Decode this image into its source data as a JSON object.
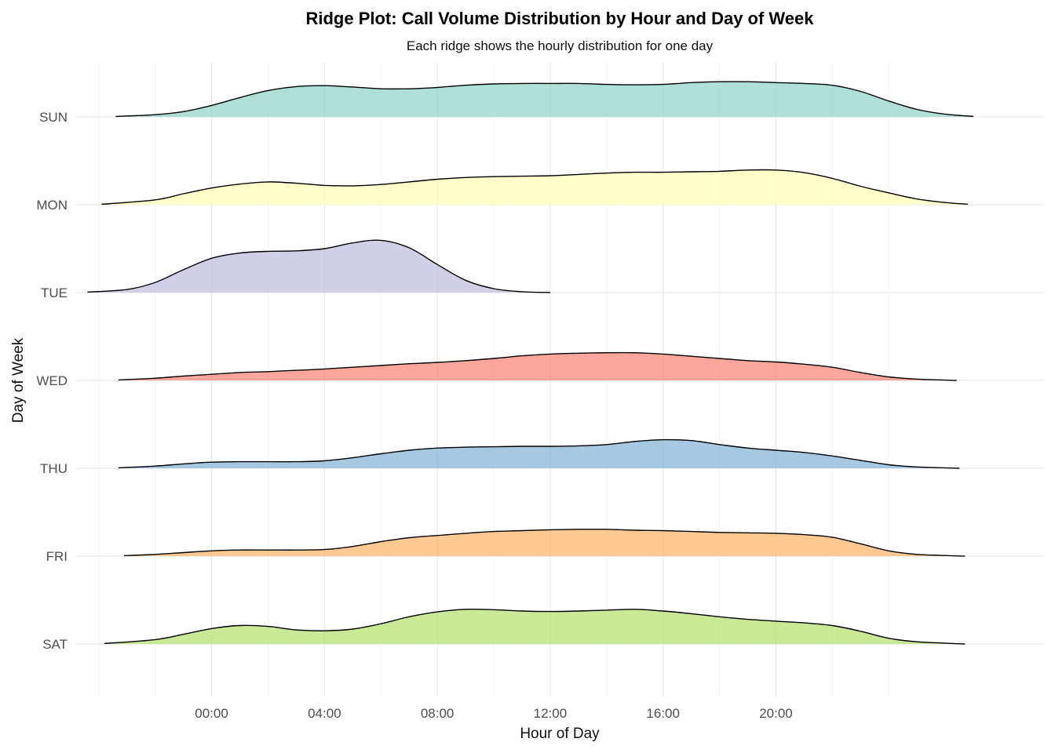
{
  "chart_data": {
    "type": "ridgeline",
    "title": "Ridge Plot: Call Volume Distribution by Hour and Day of Week",
    "subtitle": "Each ridge shows the hourly distribution for one day",
    "xlabel": "Hour of Day",
    "ylabel": "Day of Week",
    "x_ticks": [
      {
        "value": 0,
        "label": "00:00"
      },
      {
        "value": 4,
        "label": "04:00"
      },
      {
        "value": 8,
        "label": "08:00"
      },
      {
        "value": 12,
        "label": "12:00"
      },
      {
        "value": 16,
        "label": "16:00"
      },
      {
        "value": 20,
        "label": "20:00"
      }
    ],
    "xlim": [
      -4.8,
      29.5
    ],
    "grid": true,
    "legend": "none",
    "series": [
      {
        "name": "SUN",
        "color": "#8dd3c7",
        "x_range": [
          -3.4,
          27.0
        ],
        "points": [
          [
            -3.4,
            0.01
          ],
          [
            -2,
            0.05
          ],
          [
            -1,
            0.12
          ],
          [
            0,
            0.26
          ],
          [
            1,
            0.44
          ],
          [
            2,
            0.6
          ],
          [
            3,
            0.69
          ],
          [
            4,
            0.71
          ],
          [
            5,
            0.68
          ],
          [
            6,
            0.64
          ],
          [
            7,
            0.64
          ],
          [
            8,
            0.67
          ],
          [
            9,
            0.72
          ],
          [
            10,
            0.75
          ],
          [
            11,
            0.76
          ],
          [
            12,
            0.76
          ],
          [
            13,
            0.76
          ],
          [
            14,
            0.74
          ],
          [
            15,
            0.73
          ],
          [
            16,
            0.74
          ],
          [
            17,
            0.78
          ],
          [
            18,
            0.8
          ],
          [
            19,
            0.8
          ],
          [
            20,
            0.78
          ],
          [
            21,
            0.76
          ],
          [
            22,
            0.72
          ],
          [
            23,
            0.58
          ],
          [
            24,
            0.36
          ],
          [
            25,
            0.17
          ],
          [
            26,
            0.06
          ],
          [
            27,
            0.01
          ]
        ]
      },
      {
        "name": "MON",
        "color": "#ffffb3",
        "x_range": [
          -3.9,
          26.8
        ],
        "points": [
          [
            -3.9,
            0.01
          ],
          [
            -2,
            0.11
          ],
          [
            -1,
            0.25
          ],
          [
            0,
            0.38
          ],
          [
            1,
            0.47
          ],
          [
            2,
            0.52
          ],
          [
            3,
            0.49
          ],
          [
            4,
            0.44
          ],
          [
            5,
            0.43
          ],
          [
            6,
            0.46
          ],
          [
            7,
            0.52
          ],
          [
            8,
            0.58
          ],
          [
            9,
            0.62
          ],
          [
            10,
            0.64
          ],
          [
            11,
            0.65
          ],
          [
            12,
            0.66
          ],
          [
            13,
            0.69
          ],
          [
            14,
            0.72
          ],
          [
            15,
            0.74
          ],
          [
            16,
            0.74
          ],
          [
            17,
            0.75
          ],
          [
            18,
            0.76
          ],
          [
            19,
            0.79
          ],
          [
            20,
            0.79
          ],
          [
            21,
            0.73
          ],
          [
            22,
            0.6
          ],
          [
            23,
            0.42
          ],
          [
            24,
            0.27
          ],
          [
            25,
            0.13
          ],
          [
            26,
            0.05
          ],
          [
            26.8,
            0.01
          ]
        ]
      },
      {
        "name": "TUE",
        "color": "#bebada",
        "x_range": [
          -4.4,
          12.0
        ],
        "points": [
          [
            -4.4,
            0.01
          ],
          [
            -3,
            0.07
          ],
          [
            -2,
            0.23
          ],
          [
            -1,
            0.52
          ],
          [
            0,
            0.78
          ],
          [
            1,
            0.9
          ],
          [
            2,
            0.94
          ],
          [
            3,
            0.95
          ],
          [
            4,
            1.0
          ],
          [
            5,
            1.13
          ],
          [
            6,
            1.19
          ],
          [
            7,
            1.02
          ],
          [
            8,
            0.64
          ],
          [
            9,
            0.28
          ],
          [
            10,
            0.09
          ],
          [
            11,
            0.02
          ],
          [
            12,
            0.0
          ]
        ]
      },
      {
        "name": "WED",
        "color": "#fb8072",
        "x_range": [
          -3.3,
          26.4
        ],
        "points": [
          [
            -3.3,
            0.01
          ],
          [
            -2,
            0.05
          ],
          [
            -1,
            0.1
          ],
          [
            0,
            0.14
          ],
          [
            1,
            0.18
          ],
          [
            2,
            0.2
          ],
          [
            3,
            0.23
          ],
          [
            4,
            0.26
          ],
          [
            5,
            0.3
          ],
          [
            6,
            0.34
          ],
          [
            7,
            0.38
          ],
          [
            8,
            0.41
          ],
          [
            9,
            0.45
          ],
          [
            10,
            0.5
          ],
          [
            11,
            0.56
          ],
          [
            12,
            0.6
          ],
          [
            13,
            0.62
          ],
          [
            14,
            0.63
          ],
          [
            15,
            0.63
          ],
          [
            16,
            0.6
          ],
          [
            17,
            0.55
          ],
          [
            18,
            0.5
          ],
          [
            19,
            0.45
          ],
          [
            20,
            0.42
          ],
          [
            21,
            0.37
          ],
          [
            22,
            0.3
          ],
          [
            23,
            0.18
          ],
          [
            24,
            0.08
          ],
          [
            25,
            0.03
          ],
          [
            26.4,
            0.0
          ]
        ]
      },
      {
        "name": "THU",
        "color": "#80b1d3",
        "x_range": [
          -3.3,
          26.5
        ],
        "points": [
          [
            -3.3,
            0.01
          ],
          [
            -2,
            0.05
          ],
          [
            -1,
            0.1
          ],
          [
            0,
            0.14
          ],
          [
            1,
            0.15
          ],
          [
            2,
            0.15
          ],
          [
            3,
            0.15
          ],
          [
            4,
            0.17
          ],
          [
            5,
            0.24
          ],
          [
            6,
            0.33
          ],
          [
            7,
            0.41
          ],
          [
            8,
            0.46
          ],
          [
            9,
            0.48
          ],
          [
            10,
            0.49
          ],
          [
            11,
            0.5
          ],
          [
            12,
            0.5
          ],
          [
            13,
            0.51
          ],
          [
            14,
            0.54
          ],
          [
            15,
            0.61
          ],
          [
            16,
            0.65
          ],
          [
            17,
            0.63
          ],
          [
            18,
            0.54
          ],
          [
            19,
            0.46
          ],
          [
            20,
            0.41
          ],
          [
            21,
            0.36
          ],
          [
            22,
            0.28
          ],
          [
            23,
            0.18
          ],
          [
            24,
            0.08
          ],
          [
            25,
            0.03
          ],
          [
            26.5,
            0.0
          ]
        ]
      },
      {
        "name": "FRI",
        "color": "#fdb462",
        "x_range": [
          -3.1,
          26.7
        ],
        "points": [
          [
            -3.1,
            0.01
          ],
          [
            -2,
            0.04
          ],
          [
            -1,
            0.08
          ],
          [
            0,
            0.12
          ],
          [
            1,
            0.14
          ],
          [
            2,
            0.14
          ],
          [
            3,
            0.14
          ],
          [
            4,
            0.15
          ],
          [
            5,
            0.22
          ],
          [
            6,
            0.33
          ],
          [
            7,
            0.42
          ],
          [
            8,
            0.47
          ],
          [
            9,
            0.52
          ],
          [
            10,
            0.56
          ],
          [
            11,
            0.58
          ],
          [
            12,
            0.6
          ],
          [
            13,
            0.61
          ],
          [
            14,
            0.61
          ],
          [
            15,
            0.59
          ],
          [
            16,
            0.58
          ],
          [
            17,
            0.56
          ],
          [
            18,
            0.54
          ],
          [
            19,
            0.53
          ],
          [
            20,
            0.52
          ],
          [
            21,
            0.49
          ],
          [
            22,
            0.43
          ],
          [
            23,
            0.28
          ],
          [
            24,
            0.12
          ],
          [
            25,
            0.04
          ],
          [
            26.7,
            0.0
          ]
        ]
      },
      {
        "name": "SAT",
        "color": "#b3de69",
        "x_range": [
          -3.8,
          26.7
        ],
        "points": [
          [
            -3.8,
            0.01
          ],
          [
            -2,
            0.1
          ],
          [
            -1,
            0.22
          ],
          [
            0,
            0.35
          ],
          [
            1,
            0.42
          ],
          [
            2,
            0.4
          ],
          [
            3,
            0.32
          ],
          [
            4,
            0.3
          ],
          [
            5,
            0.34
          ],
          [
            6,
            0.46
          ],
          [
            7,
            0.62
          ],
          [
            8,
            0.73
          ],
          [
            9,
            0.79
          ],
          [
            10,
            0.78
          ],
          [
            11,
            0.75
          ],
          [
            12,
            0.74
          ],
          [
            13,
            0.75
          ],
          [
            14,
            0.77
          ],
          [
            15,
            0.79
          ],
          [
            16,
            0.75
          ],
          [
            17,
            0.69
          ],
          [
            18,
            0.62
          ],
          [
            19,
            0.56
          ],
          [
            20,
            0.52
          ],
          [
            21,
            0.48
          ],
          [
            22,
            0.42
          ],
          [
            23,
            0.29
          ],
          [
            24,
            0.13
          ],
          [
            25,
            0.05
          ],
          [
            26.7,
            0.0
          ]
        ]
      }
    ]
  }
}
